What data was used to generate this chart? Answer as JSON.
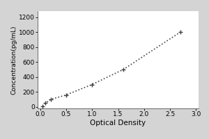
{
  "x_data": [
    0.05,
    0.1,
    0.2,
    0.5,
    1.0,
    1.6,
    2.7
  ],
  "y_data": [
    5,
    50,
    100,
    160,
    300,
    500,
    1000
  ],
  "marker": "+",
  "marker_size": 5,
  "marker_color": "#444444",
  "line_style": "dotted",
  "line_color": "#444444",
  "line_width": 1.2,
  "xlabel": "Optical Density",
  "ylabel": "Concentration(pg/mL)",
  "xlim": [
    -0.05,
    3.05
  ],
  "ylim": [
    -20,
    1280
  ],
  "xticks": [
    0,
    0.5,
    1,
    1.5,
    2,
    2.5,
    3
  ],
  "yticks": [
    0,
    200,
    400,
    600,
    800,
    1000,
    1200
  ],
  "xlabel_fontsize": 7.5,
  "ylabel_fontsize": 6.5,
  "tick_fontsize": 6.5,
  "outer_background": "#d4d4d4",
  "plot_background": "#ffffff",
  "figure_background": "#f0f0f0"
}
